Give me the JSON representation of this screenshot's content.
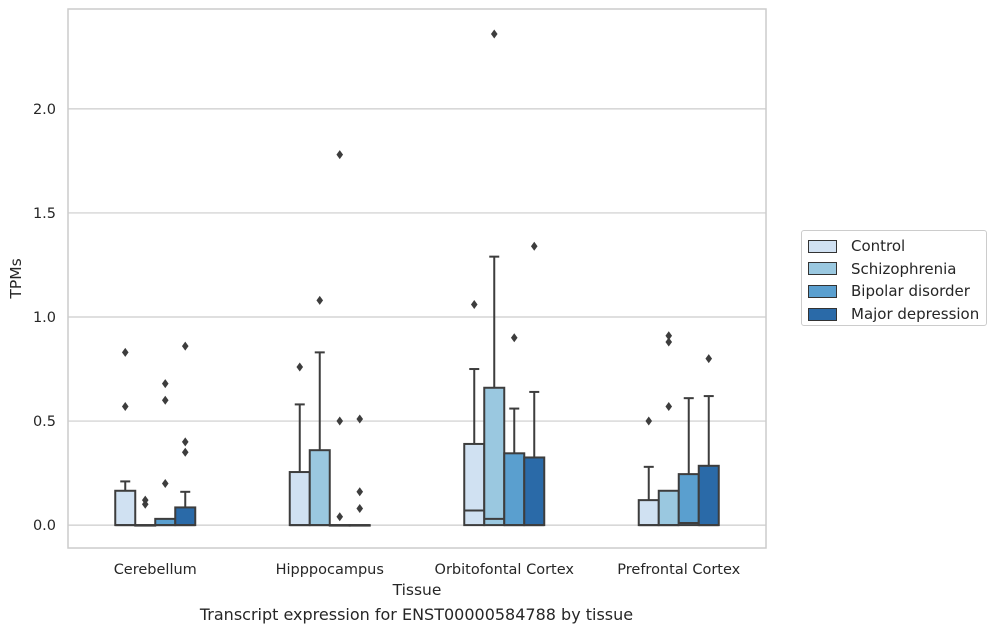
{
  "chart_data": {
    "type": "box",
    "xlabel": "Tissue",
    "ylabel": "TPMs",
    "ylim": [
      -0.11,
      2.48
    ],
    "yticks": [
      "0.0",
      "0.5",
      "1.0",
      "1.5",
      "2.0"
    ],
    "grid": "horizontal",
    "legend_position": "right",
    "categories": [
      "Cerebellum",
      "Hipppocampus",
      "Orbitofontal Cortex",
      "Prefrontal Cortex"
    ],
    "series": [
      {
        "name": "Control",
        "color": "#d0e1f2",
        "boxes": [
          {
            "q1": 0.0,
            "median": 0.0,
            "q3": 0.165,
            "whisker_low": 0.0,
            "whisker_high": 0.21,
            "fliers": [
              0.57,
              0.83
            ]
          },
          {
            "q1": 0.0,
            "median": 0.0,
            "q3": 0.255,
            "whisker_low": 0.0,
            "whisker_high": 0.58,
            "fliers": [
              0.76
            ]
          },
          {
            "q1": 0.0,
            "median": 0.07,
            "q3": 0.39,
            "whisker_low": 0.0,
            "whisker_high": 0.75,
            "fliers": [
              1.06
            ]
          },
          {
            "q1": 0.0,
            "median": 0.0,
            "q3": 0.12,
            "whisker_low": 0.0,
            "whisker_high": 0.28,
            "fliers": [
              0.5
            ]
          }
        ]
      },
      {
        "name": "Schizophrenia",
        "color": "#9ac8e0",
        "boxes": [
          {
            "q1": 0.0,
            "median": 0.0,
            "q3": 0.0,
            "whisker_low": 0.0,
            "whisker_high": 0.0,
            "fliers": [
              0.1,
              0.12
            ]
          },
          {
            "q1": 0.0,
            "median": 0.0,
            "q3": 0.36,
            "whisker_low": 0.0,
            "whisker_high": 0.83,
            "fliers": [
              1.08
            ]
          },
          {
            "q1": 0.0,
            "median": 0.03,
            "q3": 0.66,
            "whisker_low": 0.0,
            "whisker_high": 1.29,
            "fliers": [
              2.36
            ]
          },
          {
            "q1": 0.0,
            "median": 0.0,
            "q3": 0.165,
            "whisker_low": 0.0,
            "whisker_high": 0.165,
            "fliers": [
              0.57,
              0.88,
              0.91
            ]
          }
        ]
      },
      {
        "name": "Bipolar disorder",
        "color": "#5a9fcf",
        "boxes": [
          {
            "q1": 0.0,
            "median": 0.0,
            "q3": 0.03,
            "whisker_low": 0.0,
            "whisker_high": 0.03,
            "fliers": [
              0.2,
              0.6,
              0.68
            ]
          },
          {
            "q1": 0.0,
            "median": 0.0,
            "q3": 0.0,
            "whisker_low": 0.0,
            "whisker_high": 0.0,
            "fliers": [
              0.04,
              0.5,
              1.78
            ]
          },
          {
            "q1": 0.0,
            "median": 0.0,
            "q3": 0.345,
            "whisker_low": 0.0,
            "whisker_high": 0.56,
            "fliers": [
              0.9
            ]
          },
          {
            "q1": 0.0,
            "median": 0.01,
            "q3": 0.245,
            "whisker_low": 0.0,
            "whisker_high": 0.61,
            "fliers": []
          }
        ]
      },
      {
        "name": "Major depression",
        "color": "#2a6aa8",
        "boxes": [
          {
            "q1": 0.0,
            "median": 0.0,
            "q3": 0.085,
            "whisker_low": 0.0,
            "whisker_high": 0.16,
            "fliers": [
              0.35,
              0.4,
              0.86
            ]
          },
          {
            "q1": 0.0,
            "median": 0.0,
            "q3": 0.0,
            "whisker_low": 0.0,
            "whisker_high": 0.0,
            "fliers": [
              0.08,
              0.16,
              0.51
            ]
          },
          {
            "q1": 0.0,
            "median": 0.0,
            "q3": 0.325,
            "whisker_low": 0.0,
            "whisker_high": 0.64,
            "fliers": [
              1.34
            ]
          },
          {
            "q1": 0.0,
            "median": 0.0,
            "q3": 0.285,
            "whisker_low": 0.0,
            "whisker_high": 0.62,
            "fliers": [
              0.8
            ]
          }
        ]
      }
    ]
  },
  "caption": "Transcript expression for ENST00000584788 by tissue"
}
